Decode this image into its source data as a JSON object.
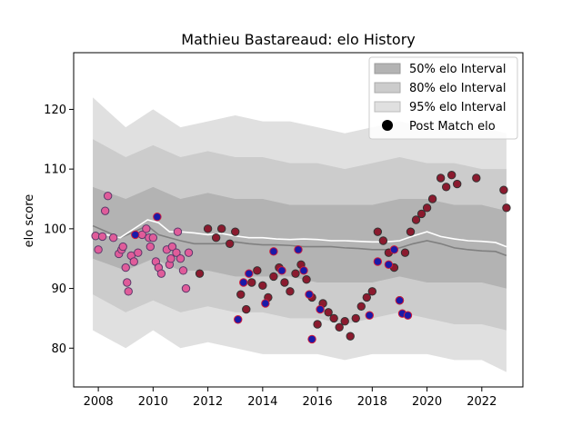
{
  "chart_data": {
    "type": "scatter",
    "title": "Mathieu Bastareaud: elo History",
    "xlabel": "",
    "ylabel": "elo score",
    "xlim": [
      2007.1,
      2023.5
    ],
    "ylim": [
      73.5,
      129.5
    ],
    "xticks": [
      2008,
      2010,
      2012,
      2014,
      2016,
      2018,
      2020,
      2022
    ],
    "yticks": [
      80,
      90,
      100,
      110,
      120
    ],
    "grid": false,
    "legend_position": "top-right",
    "legend": [
      {
        "label": "50% elo Interval",
        "kind": "band",
        "color": "#b3b3b3"
      },
      {
        "label": "80% elo Interval",
        "kind": "band",
        "color": "#cccccc"
      },
      {
        "label": "95% elo Interval",
        "kind": "band",
        "color": "#e0e0e0"
      },
      {
        "label": "Post Match elo",
        "kind": "marker",
        "color": "#000000"
      }
    ],
    "bands": {
      "x": [
        2007.8,
        2009.0,
        2010.0,
        2011.0,
        2012.0,
        2013.0,
        2014.0,
        2015.0,
        2016.0,
        2017.0,
        2018.0,
        2019.0,
        2020.0,
        2021.0,
        2022.0,
        2022.9
      ],
      "p95_upper": [
        122,
        117,
        120,
        117,
        118,
        119,
        118,
        118,
        117,
        116,
        117,
        118,
        117,
        117,
        117,
        116
      ],
      "p80_upper": [
        115,
        112,
        114,
        112,
        113,
        112,
        112,
        111,
        111,
        110,
        111,
        112,
        111,
        111,
        110,
        110
      ],
      "p50_upper": [
        107,
        105,
        107,
        105,
        106,
        105,
        105,
        104,
        104,
        104,
        104,
        105,
        105,
        104,
        104,
        103
      ],
      "p50_lower": [
        95,
        93,
        95,
        93,
        93,
        92,
        92,
        92,
        91,
        91,
        91,
        92,
        91,
        91,
        91,
        90
      ],
      "p80_lower": [
        89,
        86,
        88,
        86,
        87,
        86,
        86,
        85,
        85,
        84,
        85,
        86,
        85,
        84,
        84,
        83
      ],
      "p95_lower": [
        83,
        80,
        83,
        80,
        81,
        80,
        79,
        79,
        79,
        78,
        79,
        79,
        79,
        78,
        78,
        76
      ]
    },
    "series": [
      {
        "color": "#808080",
        "x": [
          2007.8,
          2008.3,
          2008.8,
          2009.3,
          2009.8,
          2010.2,
          2010.6,
          2011.0,
          2011.5,
          2012.0,
          2012.5,
          2013.0,
          2013.5,
          2014.0,
          2014.5,
          2015.0,
          2015.5,
          2016.0,
          2016.5,
          2017.0,
          2017.5,
          2018.0,
          2018.5,
          2019.0,
          2019.5,
          2020.0,
          2020.5,
          2021.0,
          2021.5,
          2022.0,
          2022.5,
          2022.9
        ],
        "values": [
          100.5,
          99.5,
          98.5,
          99.5,
          100.5,
          99.0,
          98.5,
          98.0,
          97.5,
          97.5,
          97.5,
          97.8,
          97.5,
          97.3,
          97.3,
          97.2,
          97.0,
          97.0,
          97.0,
          96.8,
          96.7,
          96.5,
          96.5,
          96.8,
          97.5,
          98.0,
          97.5,
          96.8,
          96.5,
          96.3,
          96.2,
          95.5
        ]
      },
      {
        "color": "#ffffff",
        "x": [
          2007.8,
          2008.3,
          2008.8,
          2009.3,
          2009.8,
          2010.2,
          2010.6,
          2011.0,
          2011.5,
          2012.0,
          2012.5,
          2013.0,
          2013.5,
          2014.0,
          2014.5,
          2015.0,
          2015.5,
          2016.0,
          2016.5,
          2017.0,
          2017.5,
          2018.0,
          2018.5,
          2019.0,
          2019.5,
          2020.0,
          2020.5,
          2021.0,
          2021.5,
          2022.0,
          2022.5,
          2022.9
        ],
        "values": [
          98.8,
          99.0,
          98.5,
          100.0,
          101.5,
          101.0,
          99.5,
          99.5,
          99.3,
          99.0,
          99.2,
          98.8,
          98.5,
          98.5,
          98.3,
          98.2,
          98.3,
          98.2,
          98.0,
          98.0,
          97.9,
          97.8,
          97.8,
          98.0,
          98.8,
          99.5,
          98.7,
          98.3,
          98.0,
          97.9,
          97.7,
          97.0
        ]
      },
      {
        "name": "Post Match elo",
        "fill": "#e05c9a",
        "stroke": "#5a3a6a",
        "x": [
          2007.9,
          2008.0,
          2008.15,
          2008.25,
          2008.35,
          2008.55,
          2008.75,
          2008.85,
          2008.9,
          2009.0,
          2009.05,
          2009.1,
          2009.2,
          2009.3,
          2009.45,
          2009.6,
          2009.75,
          2009.85,
          2009.9,
          2010.0,
          2010.1,
          2010.2,
          2010.3,
          2010.5,
          2010.6,
          2010.65,
          2010.7,
          2010.85,
          2010.9,
          2011.0,
          2011.1,
          2011.2,
          2011.3
        ],
        "values": [
          98.8,
          96.5,
          98.7,
          103.0,
          105.5,
          98.5,
          95.8,
          96.5,
          97.0,
          93.5,
          91.0,
          89.5,
          95.5,
          94.5,
          96.0,
          99.0,
          100.0,
          98.5,
          97.0,
          98.5,
          94.5,
          93.5,
          92.5,
          96.5,
          94.0,
          95.0,
          97.0,
          96.0,
          99.5,
          95.0,
          93.0,
          90.0,
          96.0
        ]
      },
      {
        "name": "Post Match elo",
        "fill": "#8b1a2e",
        "stroke": "#333333",
        "x": [
          2011.7,
          2012.0,
          2012.3,
          2012.5,
          2012.8,
          2013.0,
          2013.2,
          2013.4,
          2013.6,
          2013.8,
          2014.0,
          2014.2,
          2014.4,
          2014.6,
          2014.8,
          2015.0,
          2015.2,
          2015.4,
          2015.6,
          2015.8,
          2016.0,
          2016.2,
          2016.4,
          2016.6,
          2016.8,
          2017.0,
          2017.2,
          2017.4,
          2017.6,
          2017.8,
          2018.0,
          2018.2,
          2018.4,
          2018.6,
          2018.8,
          2019.0,
          2019.2,
          2019.4,
          2019.6,
          2019.8,
          2020.0,
          2020.2,
          2020.5,
          2020.7,
          2020.9,
          2021.1,
          2021.8,
          2022.8,
          2022.9
        ],
        "values": [
          92.5,
          100.0,
          98.5,
          100.0,
          97.5,
          99.5,
          89.0,
          86.5,
          91.0,
          93.0,
          90.5,
          88.5,
          92.0,
          93.5,
          91.0,
          89.5,
          92.5,
          94.0,
          91.5,
          88.5,
          84.0,
          87.5,
          86.0,
          85.0,
          83.5,
          84.5,
          82.0,
          85.0,
          87.0,
          88.5,
          89.5,
          99.5,
          98.0,
          96.0,
          93.5,
          88.0,
          96.0,
          99.5,
          101.5,
          102.5,
          103.5,
          105.0,
          108.5,
          107.0,
          109.0,
          107.5,
          108.5,
          106.5,
          103.5
        ]
      },
      {
        "name": "Post Match elo",
        "fill": "#1a1aa8",
        "stroke": "#d01a3a",
        "x": [
          2009.35,
          2010.15,
          2013.1,
          2013.3,
          2013.5,
          2014.1,
          2014.4,
          2014.7,
          2015.3,
          2015.5,
          2015.7,
          2015.8,
          2016.1,
          2017.9,
          2018.2,
          2018.6,
          2018.8,
          2019.0,
          2019.1,
          2019.3
        ],
        "values": [
          99.0,
          102.0,
          84.8,
          91.0,
          92.5,
          87.5,
          96.2,
          93.0,
          96.5,
          93.0,
          89.0,
          81.5,
          86.5,
          85.5,
          94.5,
          94.0,
          96.5,
          88.0,
          85.8,
          85.5
        ]
      }
    ]
  }
}
